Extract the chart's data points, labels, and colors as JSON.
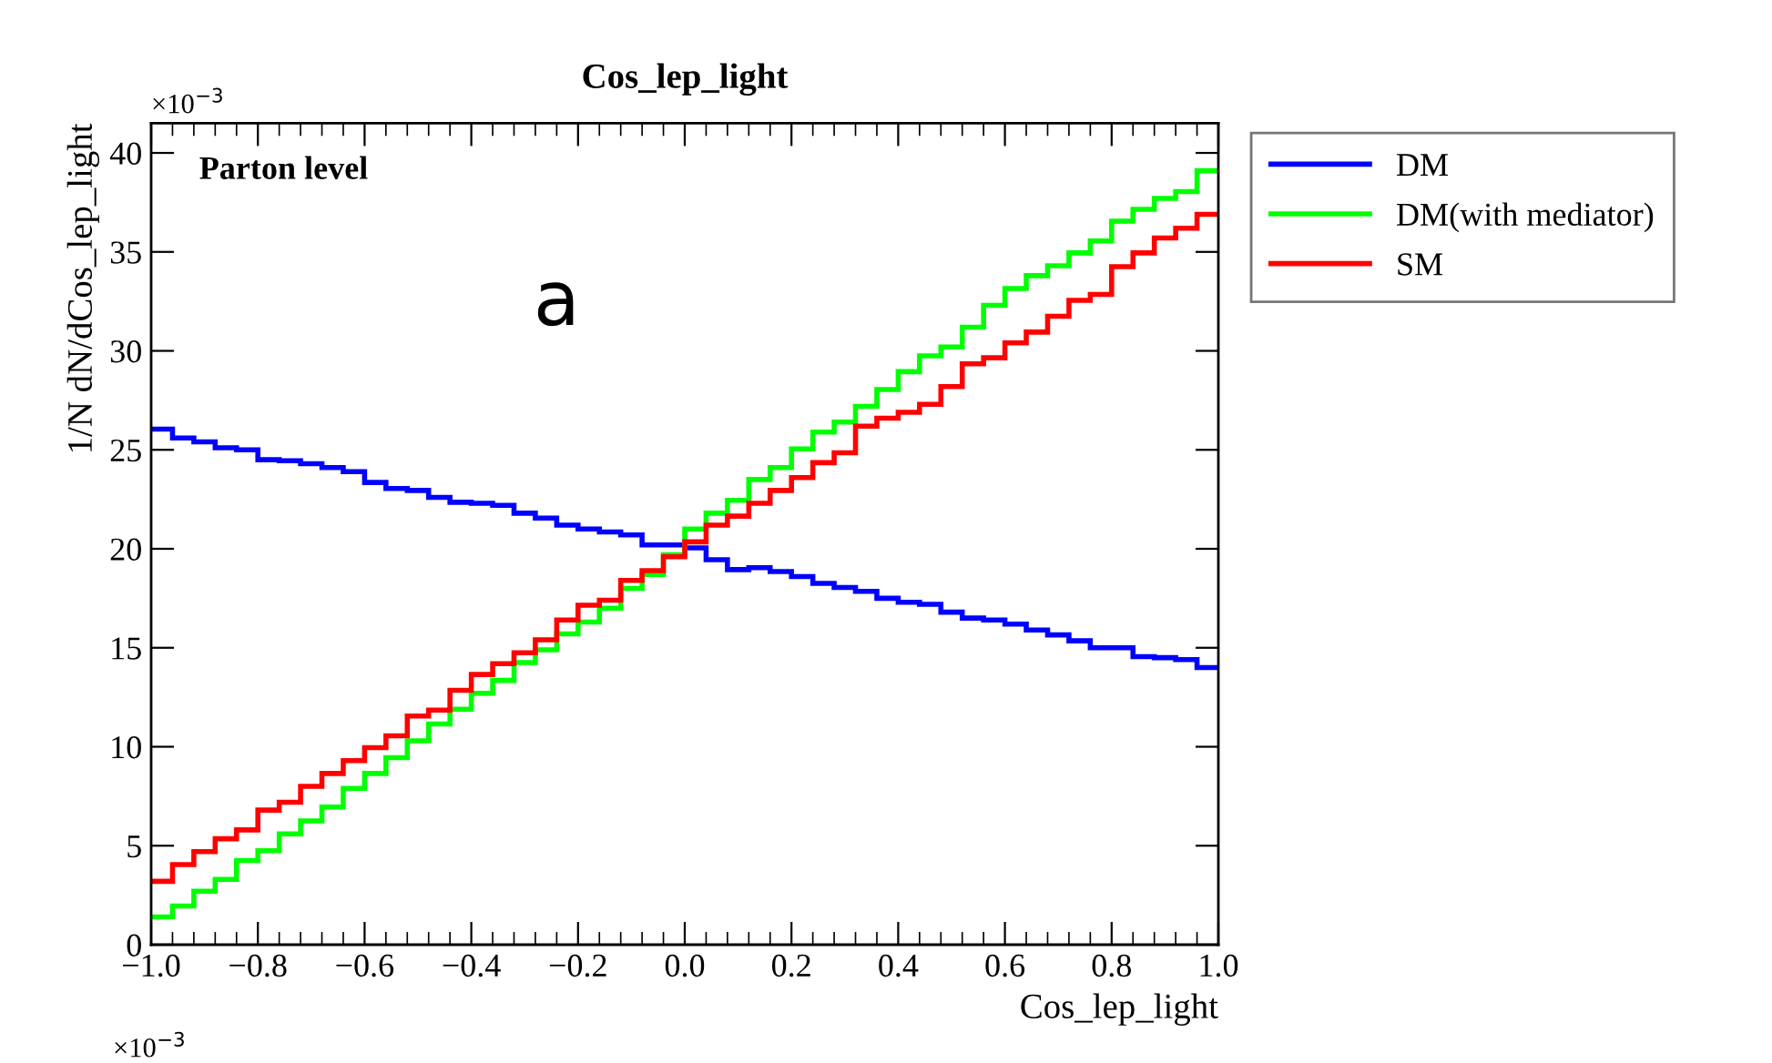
{
  "chart_data": {
    "type": "histogram",
    "title": "Cos_lep_light",
    "xlabel": "Cos_lep_light",
    "ylabel": "1/N dN/dCos_lep_light",
    "bins": [
      -1.0,
      -0.96,
      -0.92,
      -0.88,
      -0.84,
      -0.8,
      -0.76,
      -0.72,
      -0.68,
      -0.64,
      -0.6,
      -0.56,
      -0.52,
      -0.48,
      -0.44,
      -0.4,
      -0.36,
      -0.32,
      -0.28,
      -0.24,
      -0.2,
      -0.16,
      -0.12,
      -0.08,
      -0.04,
      0.0,
      0.04,
      0.08,
      0.12,
      0.16,
      0.2,
      0.24,
      0.28,
      0.32,
      0.36,
      0.4,
      0.44,
      0.48,
      0.52,
      0.56,
      0.6,
      0.64,
      0.68,
      0.72,
      0.76,
      0.8,
      0.84,
      0.88,
      0.92,
      0.96,
      1.0
    ],
    "series": [
      {
        "name": "DM",
        "color": "#0000ff",
        "values": [
          26.05,
          25.6,
          25.4,
          25.1,
          25.0,
          24.5,
          24.45,
          24.3,
          24.1,
          23.9,
          23.35,
          23.05,
          22.95,
          22.6,
          22.35,
          22.3,
          22.2,
          21.8,
          21.55,
          21.2,
          21.0,
          20.85,
          20.7,
          20.2,
          20.2,
          20.05,
          19.45,
          18.95,
          19.05,
          18.85,
          18.6,
          18.25,
          18.05,
          17.85,
          17.5,
          17.3,
          17.2,
          16.8,
          16.5,
          16.4,
          16.2,
          15.9,
          15.65,
          15.35,
          15.0,
          15.0,
          14.55,
          14.5,
          14.4,
          14.0
        ]
      },
      {
        "name": "DM(with mediator)",
        "color": "#00ff00",
        "values": [
          1.4,
          1.95,
          2.7,
          3.3,
          4.25,
          4.75,
          5.6,
          6.25,
          6.95,
          7.9,
          8.65,
          9.45,
          10.3,
          11.15,
          11.9,
          12.7,
          13.35,
          14.25,
          14.9,
          15.7,
          16.3,
          17.0,
          18.0,
          18.7,
          19.7,
          21.0,
          21.8,
          22.45,
          23.5,
          24.1,
          25.05,
          25.9,
          26.4,
          27.2,
          28.05,
          28.95,
          29.75,
          30.2,
          31.2,
          32.3,
          33.15,
          33.8,
          34.3,
          34.95,
          35.55,
          36.55,
          37.15,
          37.7,
          38.05,
          39.1
        ]
      },
      {
        "name": "SM",
        "color": "#ff0000",
        "values": [
          3.2,
          4.05,
          4.7,
          5.35,
          5.8,
          6.8,
          7.2,
          8.0,
          8.65,
          9.3,
          9.95,
          10.55,
          11.55,
          11.85,
          12.85,
          13.65,
          14.2,
          14.75,
          15.4,
          16.4,
          17.15,
          17.4,
          18.4,
          18.9,
          19.6,
          20.35,
          21.2,
          21.65,
          22.3,
          22.95,
          23.6,
          24.35,
          24.85,
          26.2,
          26.6,
          26.9,
          27.3,
          28.2,
          29.35,
          29.65,
          30.4,
          30.95,
          31.75,
          32.55,
          32.85,
          34.25,
          34.95,
          35.7,
          36.2,
          36.9
        ]
      }
    ],
    "xlim": [
      -1.0,
      1.0
    ],
    "xticks": [
      {
        "value": -1.0,
        "label": "−1.0"
      },
      {
        "value": -0.8,
        "label": "−0.8"
      },
      {
        "value": -0.6,
        "label": "−0.6"
      },
      {
        "value": -0.4,
        "label": "−0.4"
      },
      {
        "value": -0.2,
        "label": "−0.2"
      },
      {
        "value": 0.0,
        "label": "0.0"
      },
      {
        "value": 0.2,
        "label": "0.2"
      },
      {
        "value": 0.4,
        "label": "0.4"
      },
      {
        "value": 0.6,
        "label": "0.6"
      },
      {
        "value": 0.8,
        "label": "0.8"
      },
      {
        "value": 1.0,
        "label": "1.0"
      }
    ],
    "ylim": [
      0,
      41.5
    ],
    "yticks": [
      0,
      5,
      10,
      15,
      20,
      25,
      30,
      35,
      40
    ],
    "grid": false,
    "legend": "right",
    "annotations": [
      "×10$^{−3}$",
      "Parton level",
      "a",
      "×10$^{−3}$"
    ]
  }
}
